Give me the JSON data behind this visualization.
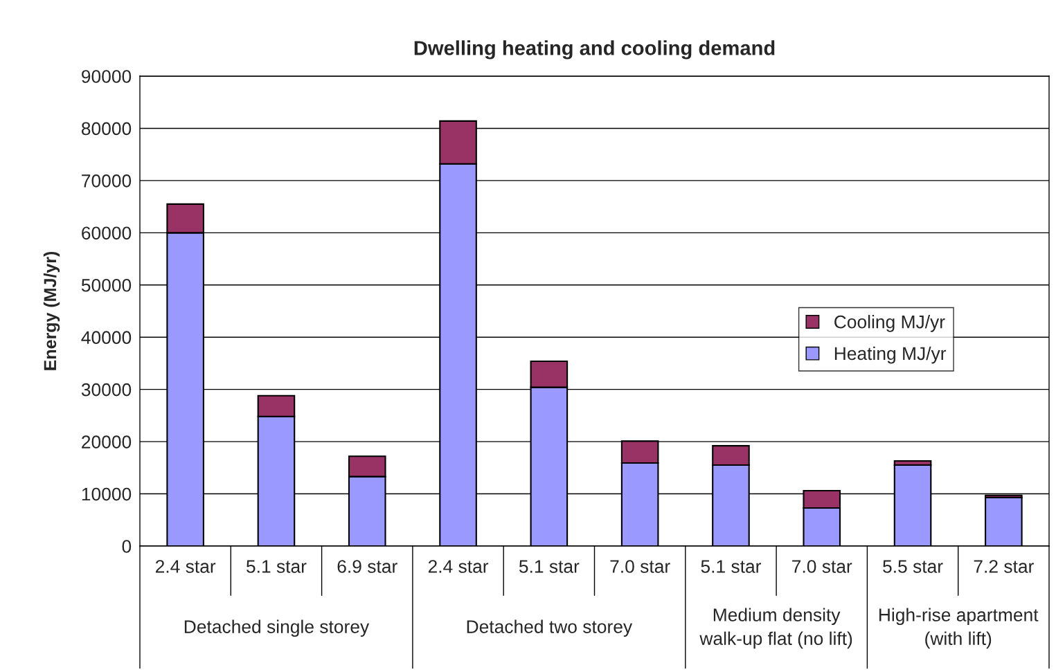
{
  "chart_data": {
    "type": "bar",
    "title": "Dwelling heating and cooling demand",
    "ylabel": "Energy (MJ/yr)",
    "categories": [
      "2.4 star",
      "5.1 star",
      "6.9 star",
      "2.4 star",
      "5.1 star",
      "7.0 star",
      "5.1 star",
      "7.0 star",
      "5.5 star",
      "7.2 star"
    ],
    "series": [
      {
        "name": "Heating MJ/yr",
        "color": "#9999ff",
        "values": [
          60000,
          24800,
          13300,
          73200,
          30400,
          15900,
          15500,
          7300,
          15500,
          9300
        ]
      },
      {
        "name": "Cooling MJ/yr",
        "color": "#993366",
        "values": [
          5500,
          4000,
          3900,
          8200,
          5000,
          4200,
          3700,
          3300,
          800,
          400
        ]
      }
    ],
    "stacked": true,
    "ylim": [
      0,
      90000
    ],
    "yticks": [
      0,
      10000,
      20000,
      30000,
      40000,
      50000,
      60000,
      70000,
      80000,
      90000
    ],
    "grid": "y",
    "legend": "right",
    "annotations": [
      "Detached single storey",
      "Detached two storey",
      "Medium density\nwalk-up flat (no lift)",
      "High-rise apartment\n(with lift)"
    ]
  }
}
